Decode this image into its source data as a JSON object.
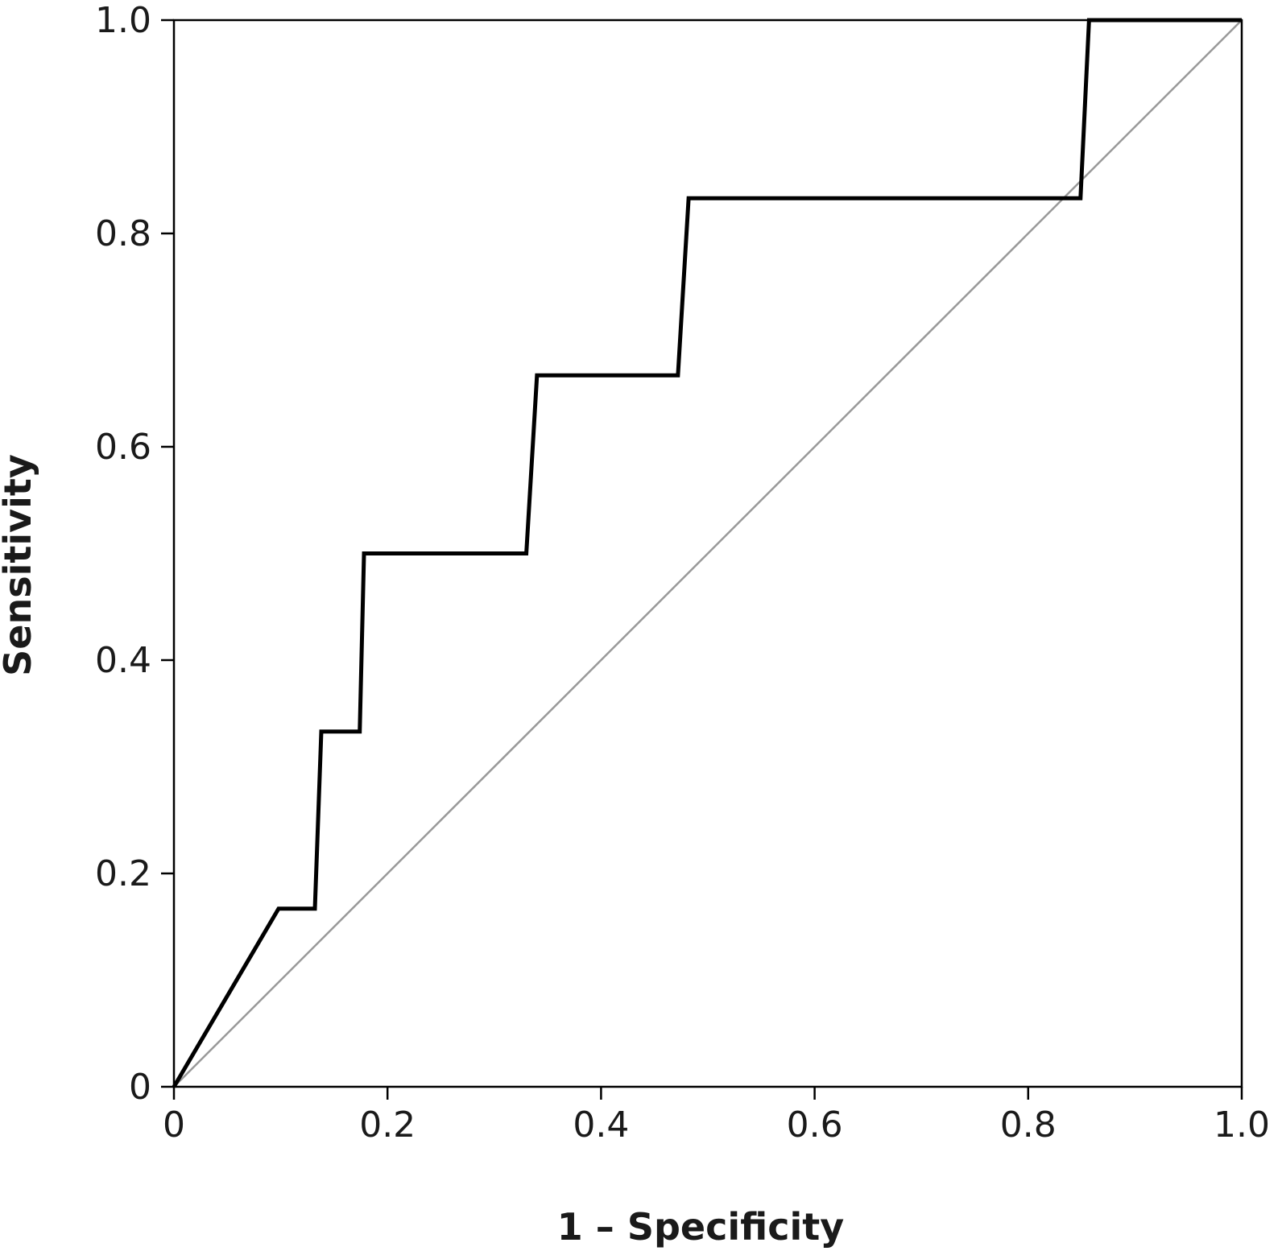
{
  "chart_data": {
    "type": "line",
    "title": "",
    "xlabel": "1 – Specificity",
    "ylabel": "Sensitivity",
    "xlim": [
      0,
      1
    ],
    "ylim": [
      0,
      1
    ],
    "x_ticks": [
      0,
      0.2,
      0.4,
      0.6,
      0.8,
      1.0
    ],
    "x_tick_labels": [
      "0",
      "0.2",
      "0.4",
      "0.6",
      "0.8",
      "1.0"
    ],
    "y_ticks": [
      0,
      0.2,
      0.4,
      0.6,
      0.8,
      1.0
    ],
    "y_tick_labels": [
      "0",
      "0.2",
      "0.4",
      "0.6",
      "0.8",
      "1.0"
    ],
    "grid": false,
    "series": [
      {
        "color": "#000000",
        "points": [
          [
            0,
            0
          ],
          [
            0.098,
            0.167
          ],
          [
            0.132,
            0.167
          ],
          [
            0.138,
            0.333
          ],
          [
            0.174,
            0.333
          ],
          [
            0.178,
            0.5
          ],
          [
            0.33,
            0.5
          ],
          [
            0.34,
            0.667
          ],
          [
            0.472,
            0.667
          ],
          [
            0.482,
            0.833
          ],
          [
            0.849,
            0.833
          ],
          [
            0.857,
            1.0
          ],
          [
            1.0,
            1.0
          ]
        ]
      },
      {
        "color": "#999999",
        "points": [
          [
            0,
            0
          ],
          [
            1,
            1
          ]
        ]
      }
    ]
  }
}
